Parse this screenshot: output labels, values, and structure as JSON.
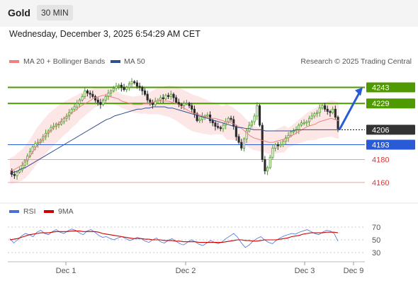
{
  "header": {
    "symbol": "Gold",
    "timeframe": "30 MIN"
  },
  "datetime": "Wednesday, December 3, 2025 6:54:29 AM CET",
  "legend": [
    {
      "label": "MA 20 + Bollinger Bands",
      "color": "#f08080"
    },
    {
      "label": "MA 50",
      "color": "#2f4f8f"
    }
  ],
  "copyright": "Research © 2025 Trading Central",
  "colors": {
    "bull": "#4f9a2c",
    "bear": "#2a2a2a",
    "support_resistance_green": "#4f9a00",
    "ma50": "#2f4f8f",
    "ma20": "#f08080",
    "band_fill": "#fde3e3",
    "blue_level": "#2a5bd7",
    "red_level": "#f0a0a0",
    "current_tag": "#333333",
    "rsi": "#4a6fd6",
    "rsi_ma": "#d00000"
  },
  "chart_data": [
    {
      "type": "candlestick",
      "title": "",
      "ylim": [
        4155,
        4260
      ],
      "levels": [
        {
          "value": 4243,
          "label": "4243",
          "style": "resistance"
        },
        {
          "value": 4229,
          "label": "4229",
          "style": "resistance"
        },
        {
          "value": 4206,
          "label": "4206",
          "style": "current"
        },
        {
          "value": 4193,
          "label": "4193",
          "style": "pivot"
        },
        {
          "value": 4180,
          "label": "4180",
          "style": "support"
        },
        {
          "value": 4160,
          "label": "4160",
          "style": "support"
        }
      ],
      "close_path": [
        4170,
        4167,
        4166,
        4169,
        4171,
        4175,
        4179,
        4183,
        4187,
        4191,
        4194,
        4195,
        4197,
        4200,
        4203,
        4205,
        4208,
        4209,
        4211,
        4211,
        4213,
        4216,
        4218,
        4221,
        4224,
        4226,
        4229,
        4232,
        4235,
        4240,
        4238,
        4237,
        4235,
        4232,
        4230,
        4228,
        4232,
        4235,
        4238,
        4240,
        4242,
        4244,
        4245,
        4243,
        4241,
        4243,
        4246,
        4248,
        4247,
        4244,
        4243,
        4240,
        4237,
        4232,
        4230,
        4228,
        4231,
        4232,
        4234,
        4233,
        4236,
        4235,
        4237,
        4234,
        4230,
        4228,
        4227,
        4229,
        4229,
        4227,
        4224,
        4220,
        4214,
        4215,
        4218,
        4218,
        4219,
        4214,
        4212,
        4209,
        4208,
        4207,
        4210,
        4213,
        4216,
        4215,
        4209,
        4200,
        4195,
        4190,
        4198,
        4205,
        4210,
        4213,
        4218,
        4227,
        4210,
        4180,
        4170,
        4173,
        4182,
        4190,
        4193,
        4192,
        4193,
        4196,
        4199,
        4201,
        4204,
        4205,
        4206,
        4210,
        4212,
        4212,
        4213,
        4216,
        4218,
        4220,
        4221,
        4225,
        4227,
        4224,
        4222,
        4221,
        4224,
        4217,
        4207
      ],
      "ma20": [
        4170,
        4171,
        4173,
        4175,
        4178,
        4182,
        4187,
        4192,
        4196,
        4200,
        4204,
        4207,
        4210,
        4213,
        4216,
        4218,
        4221,
        4223,
        4226,
        4228,
        4230,
        4232,
        4234,
        4235,
        4236,
        4236,
        4235,
        4234,
        4233,
        4231,
        4230,
        4229,
        4228,
        4228,
        4228,
        4229,
        4229,
        4230,
        4231,
        4231,
        4231,
        4231,
        4230,
        4229,
        4227,
        4225,
        4223,
        4221,
        4220,
        4219,
        4218,
        4217,
        4216,
        4216,
        4215,
        4214,
        4213,
        4212,
        4211,
        4209,
        4207,
        4204,
        4201,
        4199,
        4198,
        4197,
        4196,
        4195,
        4195,
        4196,
        4197,
        4198,
        4199,
        4201,
        4203,
        4205,
        4207,
        4209,
        4210,
        4211,
        4213,
        4214,
        4215,
        4216,
        4215,
        4214
      ],
      "ma50": [
        4168,
        4169,
        4170,
        4172,
        4173,
        4175,
        4177,
        4179,
        4181,
        4183,
        4185,
        4187,
        4189,
        4191,
        4193,
        4195,
        4197,
        4199,
        4201,
        4203,
        4205,
        4207,
        4209,
        4211,
        4213,
        4215,
        4216,
        4218,
        4219,
        4220,
        4221,
        4222,
        4223,
        4224,
        4224,
        4225,
        4225,
        4226,
        4226,
        4226,
        4226,
        4225,
        4225,
        4224,
        4223,
        4222,
        4221,
        4220,
        4219,
        4218,
        4217,
        4216,
        4215,
        4214,
        4213,
        4212,
        4211,
        4210,
        4209,
        4208,
        4208,
        4207,
        4207,
        4206,
        4206,
        4206,
        4205,
        4205,
        4205,
        4205,
        4205,
        4205,
        4205,
        4205,
        4206,
        4206,
        4206,
        4206,
        4206,
        4206,
        4206,
        4206,
        4206,
        4206,
        4206,
        4206
      ],
      "forecast_arrow": {
        "from": 4206,
        "to": 4243
      }
    },
    {
      "type": "line",
      "title": "",
      "series": [
        {
          "name": "RSI",
          "values": [
            52,
            45,
            50,
            56,
            60,
            58,
            55,
            62,
            65,
            60,
            58,
            63,
            66,
            62,
            60,
            64,
            67,
            65,
            61,
            58,
            64,
            66,
            62,
            57,
            54,
            55,
            52,
            50,
            53,
            55,
            52,
            49,
            51,
            54,
            52,
            48,
            46,
            50,
            53,
            47,
            45,
            49,
            52,
            48,
            44,
            42,
            46,
            50,
            47,
            43,
            41,
            45,
            49,
            46,
            44,
            47,
            52,
            56,
            60,
            54,
            45,
            38,
            42,
            48,
            52,
            55,
            50,
            46,
            44,
            49,
            53,
            56,
            58,
            60,
            59,
            62,
            64,
            66,
            63,
            60,
            58,
            62,
            65,
            64,
            60,
            48
          ]
        },
        {
          "name": "9MA",
          "values": [
            50,
            51,
            52,
            54,
            56,
            58,
            59,
            60,
            61,
            61,
            61,
            62,
            63,
            63,
            63,
            63,
            64,
            64,
            64,
            63,
            63,
            63,
            63,
            62,
            60,
            59,
            58,
            57,
            56,
            55,
            54,
            53,
            52,
            52,
            52,
            51,
            51,
            50,
            50,
            50,
            49,
            49,
            49,
            48,
            48,
            47,
            47,
            47,
            47,
            46,
            46,
            46,
            46,
            46,
            46,
            46,
            47,
            48,
            49,
            50,
            50,
            49,
            49,
            48,
            48,
            49,
            50,
            50,
            50,
            50,
            51,
            52,
            53,
            55,
            56,
            57,
            59,
            60,
            61,
            61,
            61,
            61,
            62,
            62,
            62,
            61
          ]
        }
      ],
      "yticks": [
        "70",
        "50",
        "30"
      ],
      "ylim": [
        20,
        80
      ]
    }
  ],
  "x_axis": {
    "tick_labels": [
      "Dec 1",
      "Dec 2",
      "Dec 3",
      "Dec 9"
    ]
  }
}
